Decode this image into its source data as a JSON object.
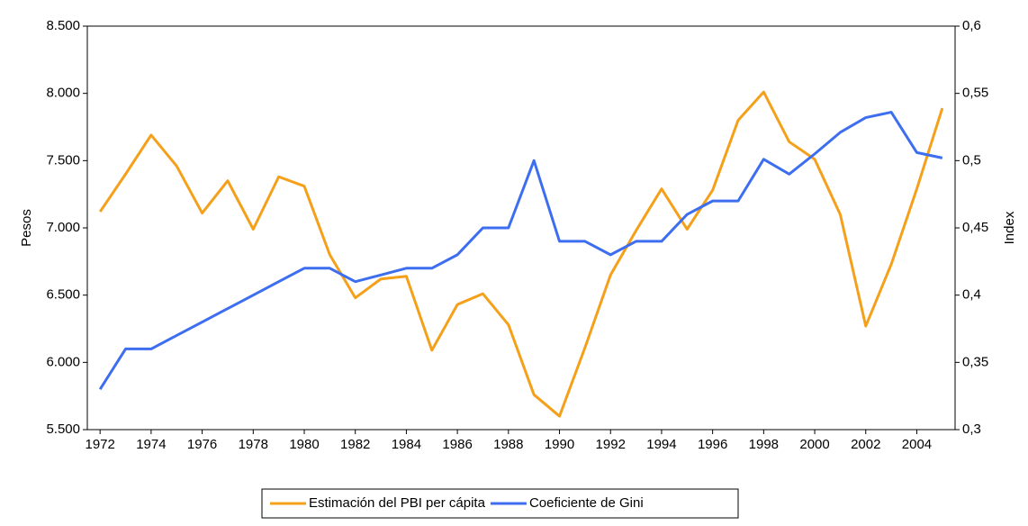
{
  "chart_data": {
    "type": "line",
    "x": [
      1972,
      1973,
      1974,
      1975,
      1976,
      1977,
      1978,
      1979,
      1980,
      1981,
      1982,
      1983,
      1984,
      1985,
      1986,
      1987,
      1988,
      1989,
      1990,
      1991,
      1992,
      1993,
      1994,
      1995,
      1996,
      1997,
      1998,
      1999,
      2000,
      2001,
      2002,
      2003,
      2004,
      2005
    ],
    "xlim": [
      1971.5,
      2005.5
    ],
    "xticks": [
      1972,
      1974,
      1976,
      1978,
      1980,
      1982,
      1984,
      1986,
      1988,
      1990,
      1992,
      1994,
      1996,
      1998,
      2000,
      2002,
      2004
    ],
    "y_label": "Pesos",
    "y2_label": "Index",
    "ylim": [
      5500,
      8500
    ],
    "yticks": [
      {
        "value": 5500,
        "label": "5.500"
      },
      {
        "value": 6000,
        "label": "6.000"
      },
      {
        "value": 6500,
        "label": "6.500"
      },
      {
        "value": 7000,
        "label": "7.000"
      },
      {
        "value": 7500,
        "label": "7.500"
      },
      {
        "value": 8000,
        "label": "8.000"
      },
      {
        "value": 8500,
        "label": "8.500"
      }
    ],
    "y2lim": [
      0.3,
      0.6
    ],
    "y2ticks": [
      {
        "value": 0.3,
        "label": "0,3"
      },
      {
        "value": 0.35,
        "label": "0,35"
      },
      {
        "value": 0.4,
        "label": "0,4"
      },
      {
        "value": 0.45,
        "label": "0,45"
      },
      {
        "value": 0.5,
        "label": "0,5"
      },
      {
        "value": 0.55,
        "label": "0,55"
      },
      {
        "value": 0.6,
        "label": "0,6"
      }
    ],
    "series": [
      {
        "name": "Estimación del PBI per cápita",
        "color": "#f5a01a",
        "values": [
          7120,
          7400,
          7690,
          7460,
          7110,
          7350,
          6990,
          7380,
          7310,
          6800,
          6480,
          6620,
          6640,
          6090,
          6430,
          6510,
          6280,
          5760,
          5600,
          6110,
          6650,
          6980,
          7290,
          6990,
          7280,
          7800,
          8010,
          7640,
          7510,
          7100,
          6270,
          6730,
          7290,
          7890
        ]
      },
      {
        "name": "Coeficiente de Gini",
        "color": "#3e6ef0",
        "axis": "y2",
        "values": [
          0.33,
          0.36,
          0.36,
          0.37,
          0.38,
          0.39,
          0.4,
          0.41,
          0.42,
          0.42,
          0.41,
          0.415,
          0.42,
          0.42,
          0.43,
          0.45,
          0.45,
          0.5,
          0.44,
          0.44,
          0.43,
          0.44,
          0.44,
          0.46,
          0.47,
          0.47,
          0.501,
          0.49,
          0.505,
          0.521,
          0.532,
          0.536,
          0.506,
          0.502
        ]
      }
    ]
  }
}
